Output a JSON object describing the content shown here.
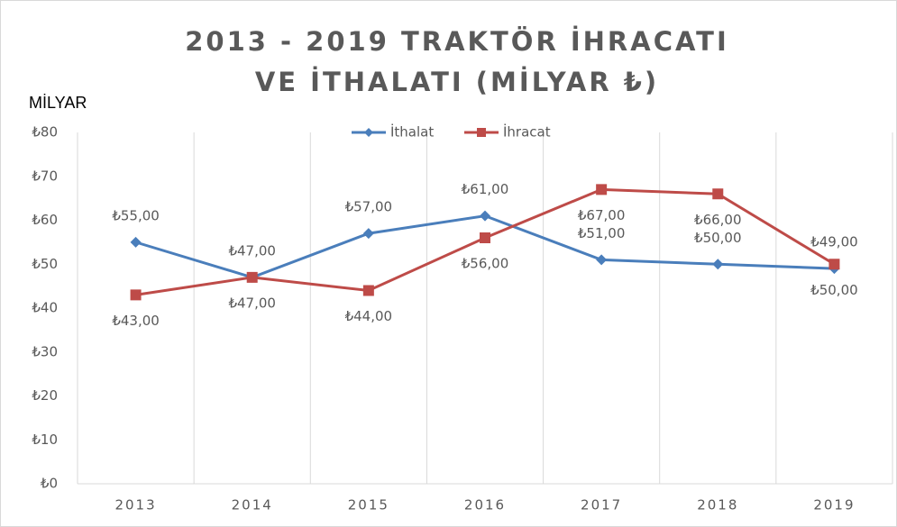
{
  "chart_data": {
    "type": "line",
    "title": "2013 - 2019 TRAKTÖR İHRACATI VE İTHALATI (MİLYAR ₺)",
    "y_label": "MİLYAR",
    "categories": [
      "2013",
      "2014",
      "2015",
      "2016",
      "2017",
      "2018",
      "2019"
    ],
    "series": [
      {
        "name": "İthalat",
        "color": "#4a7ebb",
        "marker": "diamond",
        "values": [
          55,
          47,
          57,
          61,
          51,
          50,
          49
        ],
        "value_labels": [
          "₺55,00",
          "₺47,00",
          "₺57,00",
          "₺61,00",
          "₺51,00",
          "₺50,00",
          "₺49,00"
        ]
      },
      {
        "name": "İhracat",
        "color": "#be4b48",
        "marker": "square",
        "values": [
          43,
          47,
          44,
          56,
          67,
          66,
          50
        ],
        "value_labels": [
          "₺43,00",
          "₺47,00",
          "₺44,00",
          "₺56,00",
          "₺67,00",
          "₺66,00",
          "₺50,00"
        ]
      }
    ],
    "ylim": [
      0,
      80
    ],
    "yticks": [
      {
        "value": 0,
        "label": "₺0"
      },
      {
        "value": 10,
        "label": "₺10"
      },
      {
        "value": 20,
        "label": "₺20"
      },
      {
        "value": 30,
        "label": "₺30"
      },
      {
        "value": 40,
        "label": "₺40"
      },
      {
        "value": 50,
        "label": "₺50"
      },
      {
        "value": 60,
        "label": "₺60"
      },
      {
        "value": 70,
        "label": "₺70"
      },
      {
        "value": 80,
        "label": "₺80"
      }
    ],
    "grid": "vertical",
    "legend": "top"
  }
}
